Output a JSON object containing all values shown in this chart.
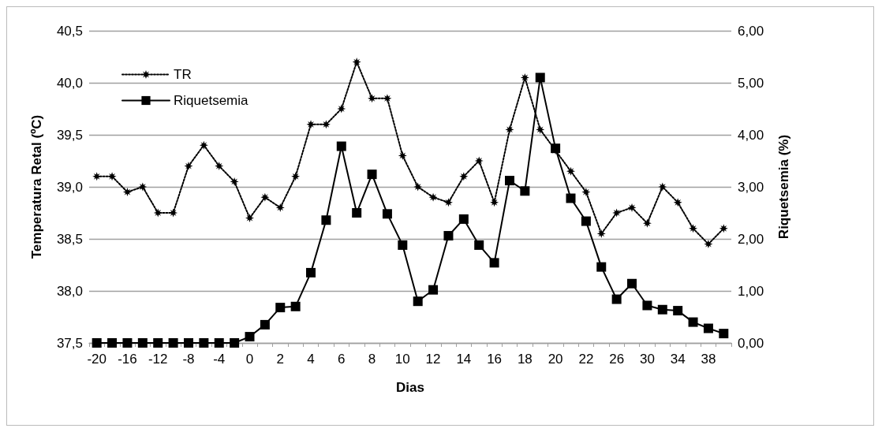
{
  "chart_data": {
    "type": "line",
    "xlabel": "Dias",
    "ylabel": "Temperatura Retal (ºC)",
    "y2label": "Riquetsemia (%)",
    "categories": [
      "-20",
      null,
      "-16",
      null,
      "-12",
      null,
      "-8",
      null,
      "-4",
      null,
      "0",
      null,
      "2",
      null,
      "4",
      null,
      "6",
      null,
      "8",
      null,
      "10",
      null,
      "12",
      null,
      "14",
      null,
      "16",
      null,
      "18",
      null,
      "20",
      null,
      "22",
      null,
      "26",
      null,
      "30",
      null,
      "34",
      null,
      "38",
      null
    ],
    "series": [
      {
        "name": "TR",
        "color": "#000000",
        "marker": "star",
        "line_style": "dotted",
        "values": [
          39.1,
          39.1,
          38.95,
          39.0,
          38.75,
          38.75,
          39.2,
          39.4,
          39.2,
          39.05,
          38.7,
          38.9,
          38.8,
          39.1,
          39.6,
          39.6,
          39.75,
          40.2,
          39.85,
          39.85,
          39.3,
          39.0,
          38.9,
          38.85,
          39.1,
          39.25,
          38.85,
          39.55,
          40.05,
          39.55,
          39.35,
          39.15,
          38.95,
          38.55,
          38.75,
          38.8,
          38.65,
          39.0,
          38.85,
          38.6,
          38.45,
          38.6
        ]
      },
      {
        "name": "Riquetsemia",
        "color": "#000000",
        "marker": "square",
        "line_style": "solid",
        "axis": "y2",
        "values": [
          0,
          0,
          0,
          0,
          0,
          0,
          0,
          0,
          0,
          0,
          0.12,
          0.35,
          0.68,
          0.7,
          1.35,
          2.36,
          3.78,
          2.5,
          3.24,
          2.48,
          1.88,
          0.8,
          1.02,
          2.06,
          2.38,
          1.88,
          1.54,
          3.12,
          2.92,
          5.1,
          3.74,
          2.78,
          2.34,
          1.46,
          0.84,
          1.14,
          0.72,
          0.64,
          0.62,
          0.4,
          0.28,
          0.18
        ]
      }
    ],
    "ylim": [
      37.5,
      40.5
    ],
    "yticks": [
      {
        "value": 37.5,
        "label": "37,5"
      },
      {
        "value": 38,
        "label": "38,0"
      },
      {
        "value": 38.5,
        "label": "38,5"
      },
      {
        "value": 39,
        "label": "39,0"
      },
      {
        "value": 39.5,
        "label": "39,5"
      },
      {
        "value": 40,
        "label": "40,0"
      },
      {
        "value": 40.5,
        "label": "40,5"
      }
    ],
    "y2lim": [
      0,
      6
    ],
    "y2ticks": [
      {
        "value": 0,
        "label": "0,00"
      },
      {
        "value": 1,
        "label": "1,00"
      },
      {
        "value": 2,
        "label": "2,00"
      },
      {
        "value": 3,
        "label": "3,00"
      },
      {
        "value": 4,
        "label": "4,00"
      },
      {
        "value": 5,
        "label": "5,00"
      },
      {
        "value": 6,
        "label": "6,00"
      }
    ],
    "grid": "y",
    "legend": "top left"
  }
}
